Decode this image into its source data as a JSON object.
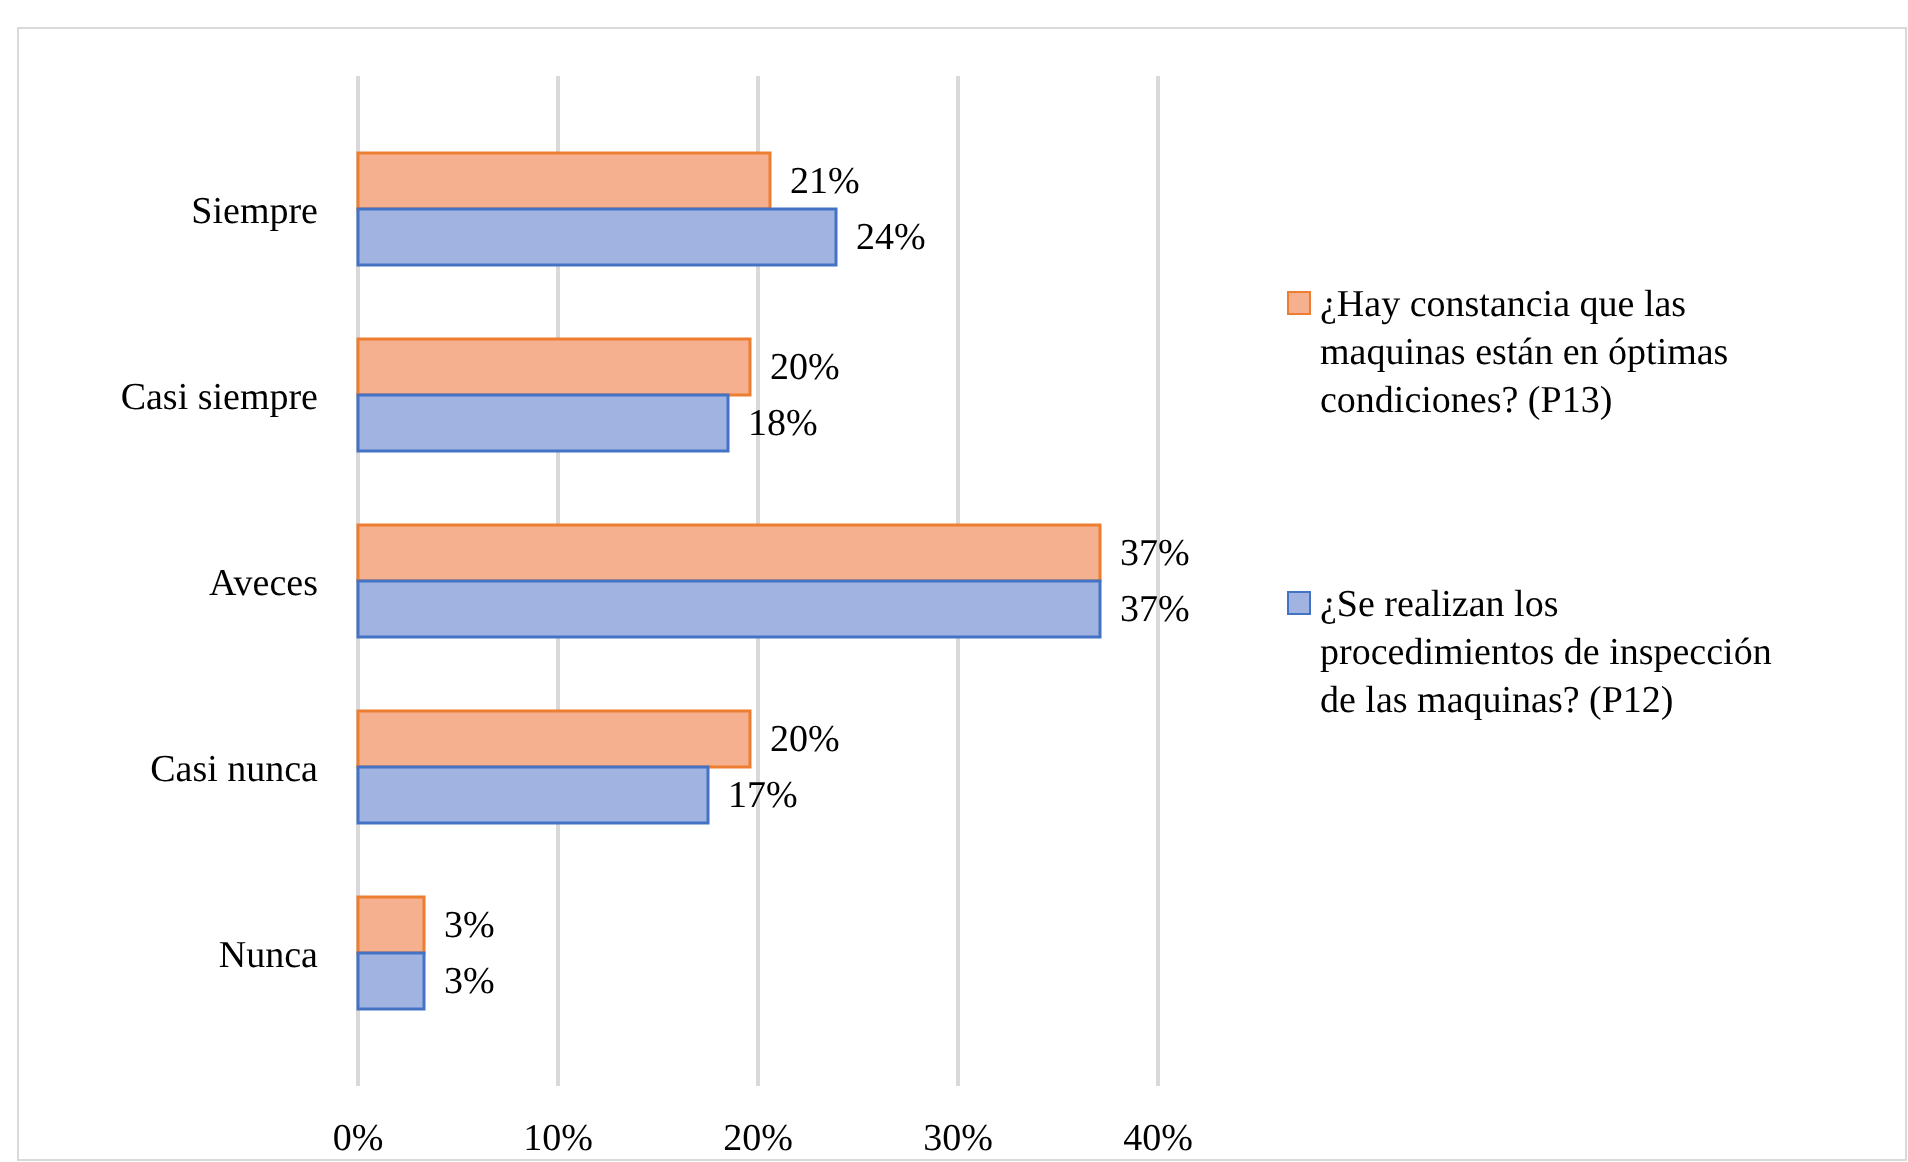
{
  "chart_data": {
    "type": "bar",
    "orientation": "horizontal",
    "categories": [
      "Siempre",
      "Casi siempre",
      "Aveces",
      "Casi nunca",
      "Nunca"
    ],
    "series": [
      {
        "name": "¿Hay constancia que las maquinas están en óptimas condiciones? (P13)",
        "color": "#f4b08f",
        "values": [
          20.6,
          19.6,
          37.1,
          19.6,
          3.3
        ],
        "value_labels": [
          "21%",
          "20%",
          "37%",
          "20%",
          "3%"
        ]
      },
      {
        "name": "¿Se realizan los procedimientos de inspección de las maquinas? (P12)",
        "color": "#a1b3e0",
        "values": [
          23.9,
          18.5,
          37.1,
          17.5,
          3.3
        ],
        "value_labels": [
          "24%",
          "18%",
          "37%",
          "17%",
          "3%"
        ]
      }
    ],
    "xlim": [
      0,
      40
    ],
    "xticks": [
      {
        "value": 0,
        "label": "0%"
      },
      {
        "value": 10,
        "label": "10%"
      },
      {
        "value": 20,
        "label": "20%"
      },
      {
        "value": 30,
        "label": "30%"
      },
      {
        "value": 40,
        "label": "40%"
      }
    ],
    "grid": "x",
    "legend": "right"
  }
}
